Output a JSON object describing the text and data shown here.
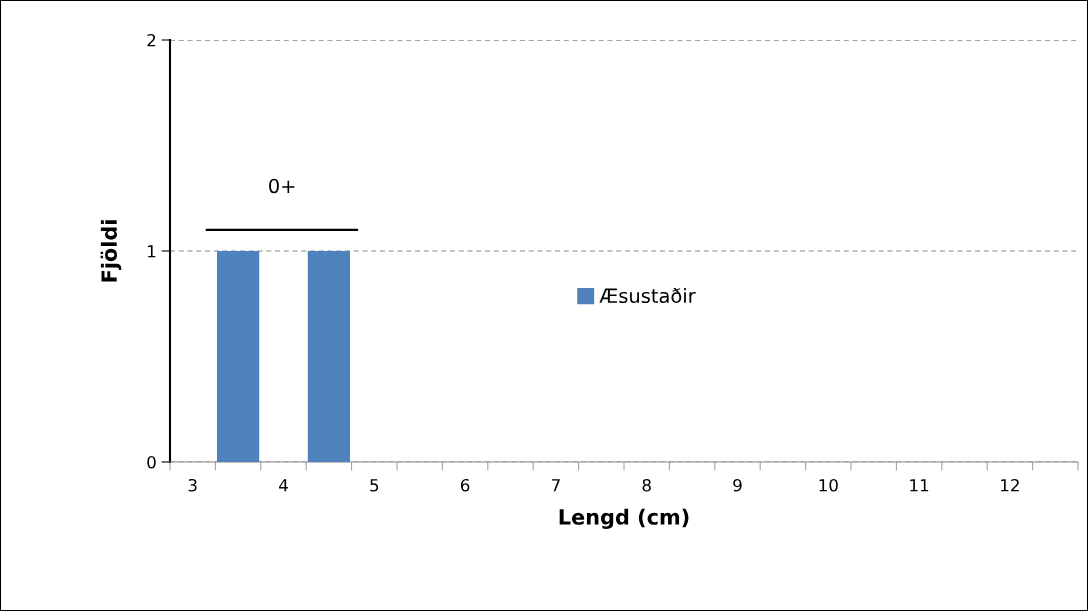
{
  "chart_data": {
    "type": "bar",
    "xlabel": "Lengd (cm)",
    "ylabel": "Fjöldi",
    "categories": [
      "3",
      null,
      "4",
      null,
      "5",
      null,
      "6",
      null,
      "7",
      null,
      "8",
      null,
      "9",
      null,
      "10",
      null,
      "11",
      null,
      "12",
      null
    ],
    "series": [
      {
        "name": "Æsustaðir",
        "color": "#4f81bd",
        "values": [
          0,
          1,
          0,
          1,
          0,
          0,
          0,
          0,
          0,
          0,
          0,
          0,
          0,
          0,
          0,
          0,
          0,
          0,
          0,
          0
        ]
      }
    ],
    "ylim": [
      0,
      2
    ],
    "yticks": [
      0,
      1,
      2
    ],
    "grid": "y",
    "legend": "center",
    "annotations": [
      "0+"
    ]
  }
}
